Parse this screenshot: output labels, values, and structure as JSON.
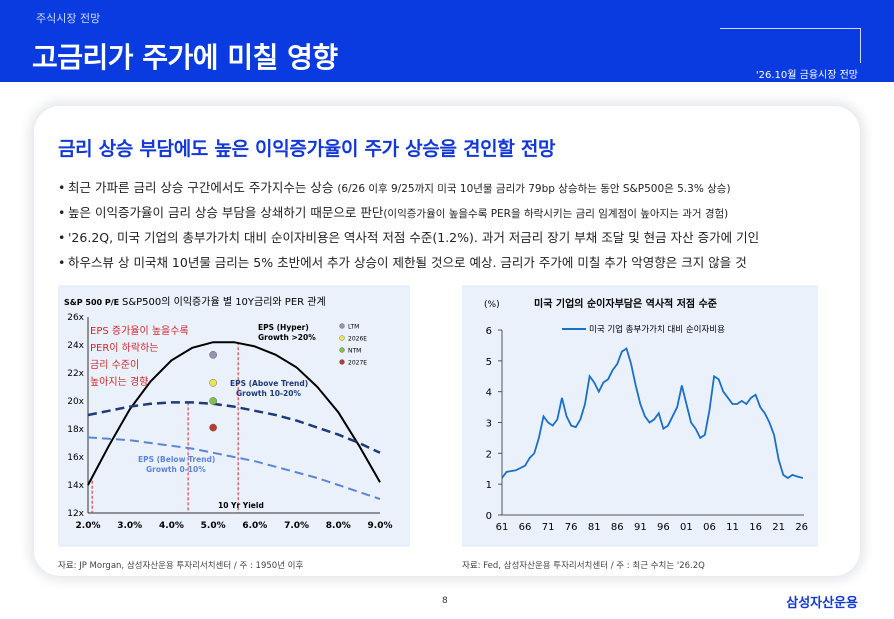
{
  "header": {
    "section": "주식시장 전망",
    "title": "고금리가 주가에 미칠 영향",
    "tag": "'26.10월 금융시장 전망"
  },
  "headline": "금리 상승 부담에도 높은 이익증가율이 주가 상승을 견인할 전망",
  "bullets": [
    {
      "main": "최근 가파른 금리 상승 구간에서도 주가지수는 상승 ",
      "small": "(6/26 이후 9/25까지 미국 10년물 금리가 79bp 상승하는 동안 S&P500은 5.3% 상승)"
    },
    {
      "main": "높은 이익증가율이 금리 상승 부담을 상쇄하기 때문으로 판단",
      "small": "(이익증가율이 높을수록 PER을 하락시키는 금리 임계점이 높아지는 과거 경험)"
    },
    {
      "main": "'26.2Q, 미국 기업의 총부가가치 대비 순이자비용은 역사적 저점 수준(1.2%). 과거 저금리 장기 부채 조달 및 현금 자산 증가에 기인",
      "small": ""
    },
    {
      "main": "하우스뷰 상 미국채 10년물 금리는 5% 초반에서 추가 상승이 제한될 것으로 예상. 금리가 주가에 미칠 추가 악영향은 크지 않을 것",
      "small": ""
    }
  ],
  "chart_data": [
    {
      "type": "line",
      "title": "S&P500의 이익증가율 별 10Y금리와 PER 관계",
      "ylabel": "S&P 500 P/E",
      "xlabel": "10 Yr Yield",
      "x_ticks": [
        "2.0%",
        "3.0%",
        "4.0%",
        "5.0%",
        "6.0%",
        "7.0%",
        "8.0%",
        "9.0%"
      ],
      "y_ticks": [
        "12x",
        "14x",
        "16x",
        "18x",
        "20x",
        "22x",
        "24x",
        "26x"
      ],
      "xlim": [
        2.0,
        9.0
      ],
      "ylim": [
        12,
        26
      ],
      "series": [
        {
          "name": "EPS (Hyper) Growth >20%",
          "style": "solid",
          "color": "#000000",
          "x": [
            2.0,
            2.5,
            3.0,
            3.5,
            4.0,
            4.5,
            5.0,
            5.5,
            6.0,
            6.5,
            7.0,
            7.5,
            8.0,
            8.5,
            9.0
          ],
          "y": [
            14.0,
            16.8,
            19.4,
            21.4,
            22.9,
            23.8,
            24.2,
            24.2,
            23.9,
            23.3,
            22.4,
            21.0,
            19.2,
            16.8,
            14.2
          ]
        },
        {
          "name": "EPS (Above Trend) Growth 10-20%",
          "style": "dash",
          "color": "#1f3a78",
          "x": [
            2.0,
            2.5,
            3.0,
            3.5,
            4.0,
            4.5,
            5.0,
            5.5,
            6.0,
            6.5,
            7.0,
            7.5,
            8.0,
            8.5,
            9.0
          ],
          "y": [
            19.0,
            19.3,
            19.6,
            19.8,
            19.9,
            19.9,
            19.8,
            19.6,
            19.3,
            19.0,
            18.6,
            18.1,
            17.6,
            17.0,
            16.3
          ]
        },
        {
          "name": "EPS (Below Trend) Growth 0-10%",
          "style": "dash",
          "color": "#5b86d6",
          "x": [
            2.0,
            2.5,
            3.0,
            3.5,
            4.0,
            4.5,
            5.0,
            5.5,
            6.0,
            6.5,
            7.0,
            7.5,
            8.0,
            8.5,
            9.0
          ],
          "y": [
            17.4,
            17.3,
            17.2,
            17.0,
            16.8,
            16.6,
            16.3,
            16.0,
            15.7,
            15.3,
            14.9,
            14.5,
            14.0,
            13.5,
            13.0
          ]
        }
      ],
      "markers": [
        {
          "name": "LTM",
          "x": 5.0,
          "y": 23.3,
          "color": "#9a8fb5"
        },
        {
          "name": "2026E",
          "x": 5.0,
          "y": 21.3,
          "color": "#e8e84a"
        },
        {
          "name": "NTM",
          "x": 5.0,
          "y": 20.0,
          "color": "#7dc24a"
        },
        {
          "name": "2027E",
          "x": 5.0,
          "y": 18.1,
          "color": "#c0392b"
        }
      ],
      "vlines": [
        2.1,
        4.4,
        5.6
      ],
      "labels": {
        "hyper": [
          "EPS (Hyper)",
          "Growth >20%"
        ],
        "above": [
          "EPS (Above Trend)",
          "Growth  10-20%"
        ],
        "below": [
          "EPS (Below Trend)",
          "Growth 0-10%"
        ]
      },
      "annotation": [
        "EPS 증가율이 높을수록",
        "PER이 하락하는",
        "금리 수준이",
        "높아지는 경향"
      ],
      "grid": false,
      "legend": "top-right"
    },
    {
      "type": "line",
      "title": "미국 기업의 순이자부담은 역사적 저점 수준",
      "ylabel": "(%)",
      "x_ticks": [
        "61",
        "66",
        "71",
        "76",
        "81",
        "86",
        "91",
        "96",
        "01",
        "06",
        "11",
        "16",
        "21",
        "26"
      ],
      "y_ticks": [
        "0",
        "1",
        "2",
        "3",
        "4",
        "5",
        "6"
      ],
      "xlim": [
        1961,
        2026.5
      ],
      "ylim": [
        0,
        6
      ],
      "series": [
        {
          "name": "미국 기업 총부가가치 대비 순이자비용",
          "color": "#1a6fc8",
          "x": [
            1961,
            1962,
            1964,
            1966,
            1967,
            1968,
            1969,
            1970,
            1971,
            1972,
            1973,
            1974,
            1975,
            1976,
            1977,
            1978,
            1979,
            1980,
            1981,
            1982,
            1983,
            1984,
            1985,
            1986,
            1987,
            1988,
            1989,
            1990,
            1991,
            1992,
            1993,
            1994,
            1995,
            1996,
            1997,
            1998,
            1999,
            2000,
            2001,
            2002,
            2003,
            2004,
            2005,
            2006,
            2007,
            2008,
            2009,
            2010,
            2011,
            2012,
            2013,
            2014,
            2015,
            2016,
            2017,
            2018,
            2019,
            2020,
            2021,
            2022,
            2023,
            2024,
            2025,
            2026.25
          ],
          "y": [
            1.2,
            1.4,
            1.45,
            1.6,
            1.85,
            2.0,
            2.5,
            3.2,
            3.0,
            2.9,
            3.1,
            3.8,
            3.2,
            2.9,
            2.85,
            3.1,
            3.6,
            4.5,
            4.3,
            4.0,
            4.3,
            4.4,
            4.7,
            4.9,
            5.3,
            5.4,
            4.9,
            4.2,
            3.6,
            3.2,
            3.0,
            3.1,
            3.3,
            2.8,
            2.9,
            3.2,
            3.5,
            4.2,
            3.6,
            3.0,
            2.8,
            2.5,
            2.6,
            3.4,
            4.5,
            4.4,
            4.0,
            3.8,
            3.6,
            3.6,
            3.7,
            3.6,
            3.8,
            3.9,
            3.5,
            3.3,
            3.0,
            2.6,
            1.8,
            1.3,
            1.2,
            1.3,
            1.25,
            1.2
          ]
        }
      ],
      "grid": false,
      "legend": "top-left"
    }
  ],
  "sources": {
    "left": "자료: JP Morgan, 삼성자산운용 투자리서치센터 / 주 : 1950년 이후",
    "right": "자료: Fed, 삼성자산운용 투자리서치센터 / 주 : 최근 수치는 '26.2Q"
  },
  "page_number": "8",
  "brand": "삼성자산운용"
}
